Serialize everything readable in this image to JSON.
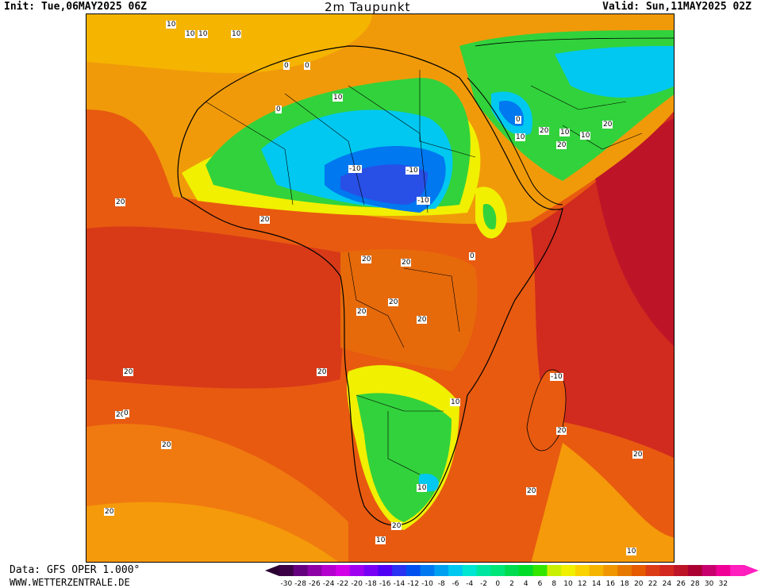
{
  "header": {
    "init": "Init: Tue,06MAY2025 06Z",
    "title": "2m Taupunkt",
    "valid": "Valid: Sun,11MAY2025 02Z"
  },
  "footer": {
    "data_source": "Data: GFS OPER 1.000°",
    "site": "WWW.WETTERZENTRALE.DE"
  },
  "colorbar": {
    "ticks": [
      "-30",
      "-28",
      "-26",
      "-24",
      "-22",
      "-20",
      "-18",
      "-16",
      "-14",
      "-12",
      "-10",
      "-8",
      "-6",
      "-4",
      "-2",
      "0",
      "2",
      "4",
      "6",
      "8",
      "10",
      "12",
      "14",
      "16",
      "18",
      "20",
      "22",
      "24",
      "26",
      "28",
      "30",
      "32"
    ],
    "colors": [
      "#3c0046",
      "#64007d",
      "#8c00a5",
      "#b400cd",
      "#d200e6",
      "#a000f0",
      "#7800f5",
      "#5000f5",
      "#2832f0",
      "#0050f0",
      "#0078f0",
      "#00a0f0",
      "#00c8f0",
      "#00e6d2",
      "#00e6a0",
      "#00e678",
      "#00dc50",
      "#00dc28",
      "#32e600",
      "#c8f000",
      "#f0f000",
      "#fad200",
      "#f5b400",
      "#f09600",
      "#e67800",
      "#e65a00",
      "#dc3c14",
      "#d2281e",
      "#be1428",
      "#aa0032",
      "#c8006e",
      "#f00096",
      "#ff1ebe"
    ]
  },
  "contour_labels": [
    "10",
    "10",
    "10",
    "10",
    "0",
    "0",
    "0",
    "10",
    "-10",
    "-10",
    "-10",
    "0",
    "10",
    "20",
    "20",
    "20",
    "20",
    "20",
    "20",
    "0",
    "10",
    "20",
    "20",
    "20",
    "20",
    "20",
    "10",
    "20",
    "20",
    "20",
    "20",
    "20",
    "20",
    "-10",
    "0",
    "10",
    "10",
    "10",
    "20",
    "10",
    "20"
  ]
}
